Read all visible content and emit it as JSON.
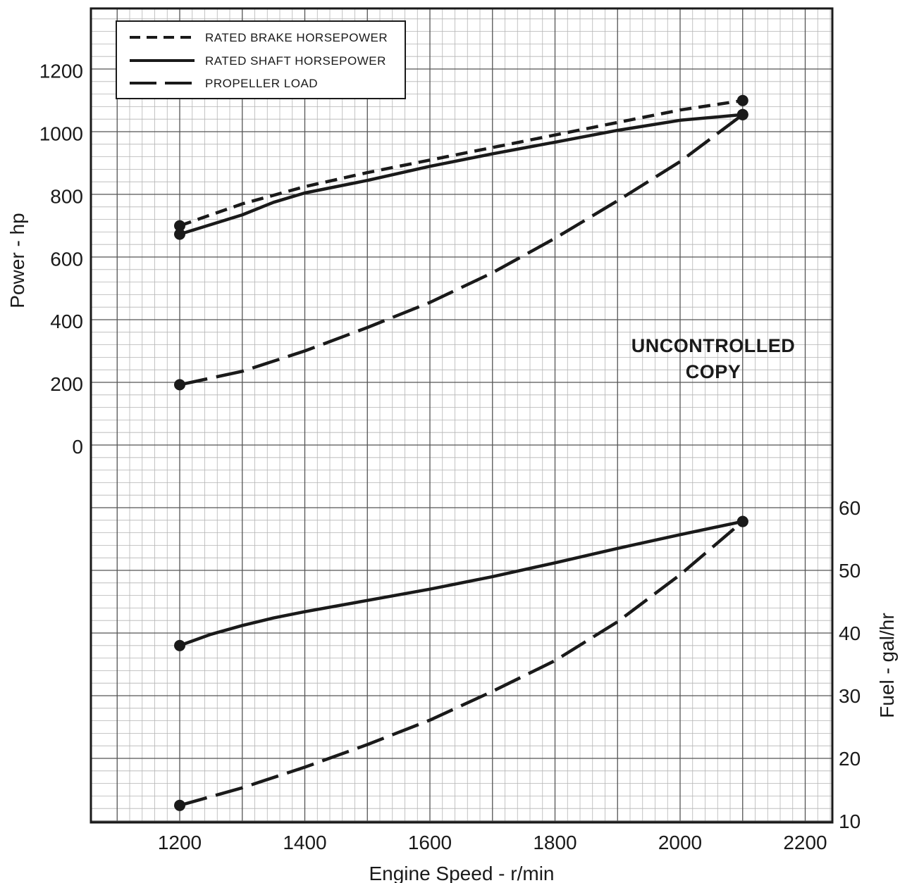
{
  "chart_data": {
    "type": "line",
    "xlabel": "Engine Speed - r/min",
    "ylabel": "Power - hp",
    "y2label": "Fuel - gal/hr",
    "xlim": [
      1060,
      2240
    ],
    "xticks": [
      1200,
      1400,
      1600,
      1800,
      2000,
      2200
    ],
    "ylim": [
      0,
      1400
    ],
    "yticks": [
      0,
      200,
      400,
      600,
      800,
      1000,
      1200
    ],
    "y2lim": [
      10,
      65
    ],
    "y2ticks": [
      10,
      20,
      30,
      40,
      50,
      60
    ],
    "grid": true,
    "legend_position": "top-left",
    "legend": [
      {
        "label": "RATED BRAKE HORSEPOWER",
        "style": "short-dash"
      },
      {
        "label": "RATED SHAFT HORSEPOWER",
        "style": "solid"
      },
      {
        "label": "PROPELLER LOAD",
        "style": "long-dash"
      }
    ],
    "watermark": [
      "UNCONTROLLED",
      "COPY"
    ],
    "series": [
      {
        "legend_index": 0,
        "axis": "left",
        "style": "short-dash",
        "x": [
          1200,
          1300,
          1400,
          1500,
          1600,
          1700,
          1800,
          1900,
          2000,
          2100
        ],
        "y": [
          705,
          775,
          830,
          875,
          915,
          955,
          995,
          1035,
          1075,
          1105
        ],
        "markers": [
          0,
          9
        ]
      },
      {
        "legend_index": 1,
        "axis": "left",
        "style": "solid",
        "x": [
          1200,
          1300,
          1350,
          1400,
          1500,
          1600,
          1700,
          1800,
          1900,
          2000,
          2100
        ],
        "y": [
          678,
          740,
          780,
          810,
          850,
          895,
          935,
          972,
          1010,
          1042,
          1060
        ],
        "markers": [
          0,
          10
        ]
      },
      {
        "legend_index": 2,
        "axis": "left",
        "style": "long-dash",
        "x": [
          1200,
          1300,
          1400,
          1500,
          1600,
          1700,
          1800,
          1900,
          2000,
          2100
        ],
        "y": [
          197,
          240,
          305,
          380,
          460,
          555,
          665,
          785,
          910,
          1060
        ],
        "markers": [
          0,
          9
        ]
      },
      {
        "axis": "right",
        "style": "solid",
        "x": [
          1200,
          1250,
          1300,
          1350,
          1400,
          1500,
          1600,
          1700,
          1800,
          1900,
          2000,
          2100
        ],
        "y": [
          38,
          39.8,
          41.2,
          42.4,
          43.4,
          45.2,
          47,
          49,
          51.2,
          53.5,
          55.7,
          57.8
        ],
        "markers": [
          0,
          11
        ]
      },
      {
        "axis": "right",
        "style": "long-dash",
        "x": [
          1200,
          1300,
          1400,
          1500,
          1600,
          1700,
          1800,
          1900,
          2000,
          2100
        ],
        "y": [
          12.5,
          15.3,
          18.6,
          22.2,
          26.1,
          30.7,
          35.6,
          41.8,
          49.3,
          57.8
        ],
        "markers": [
          0,
          9
        ]
      }
    ]
  }
}
